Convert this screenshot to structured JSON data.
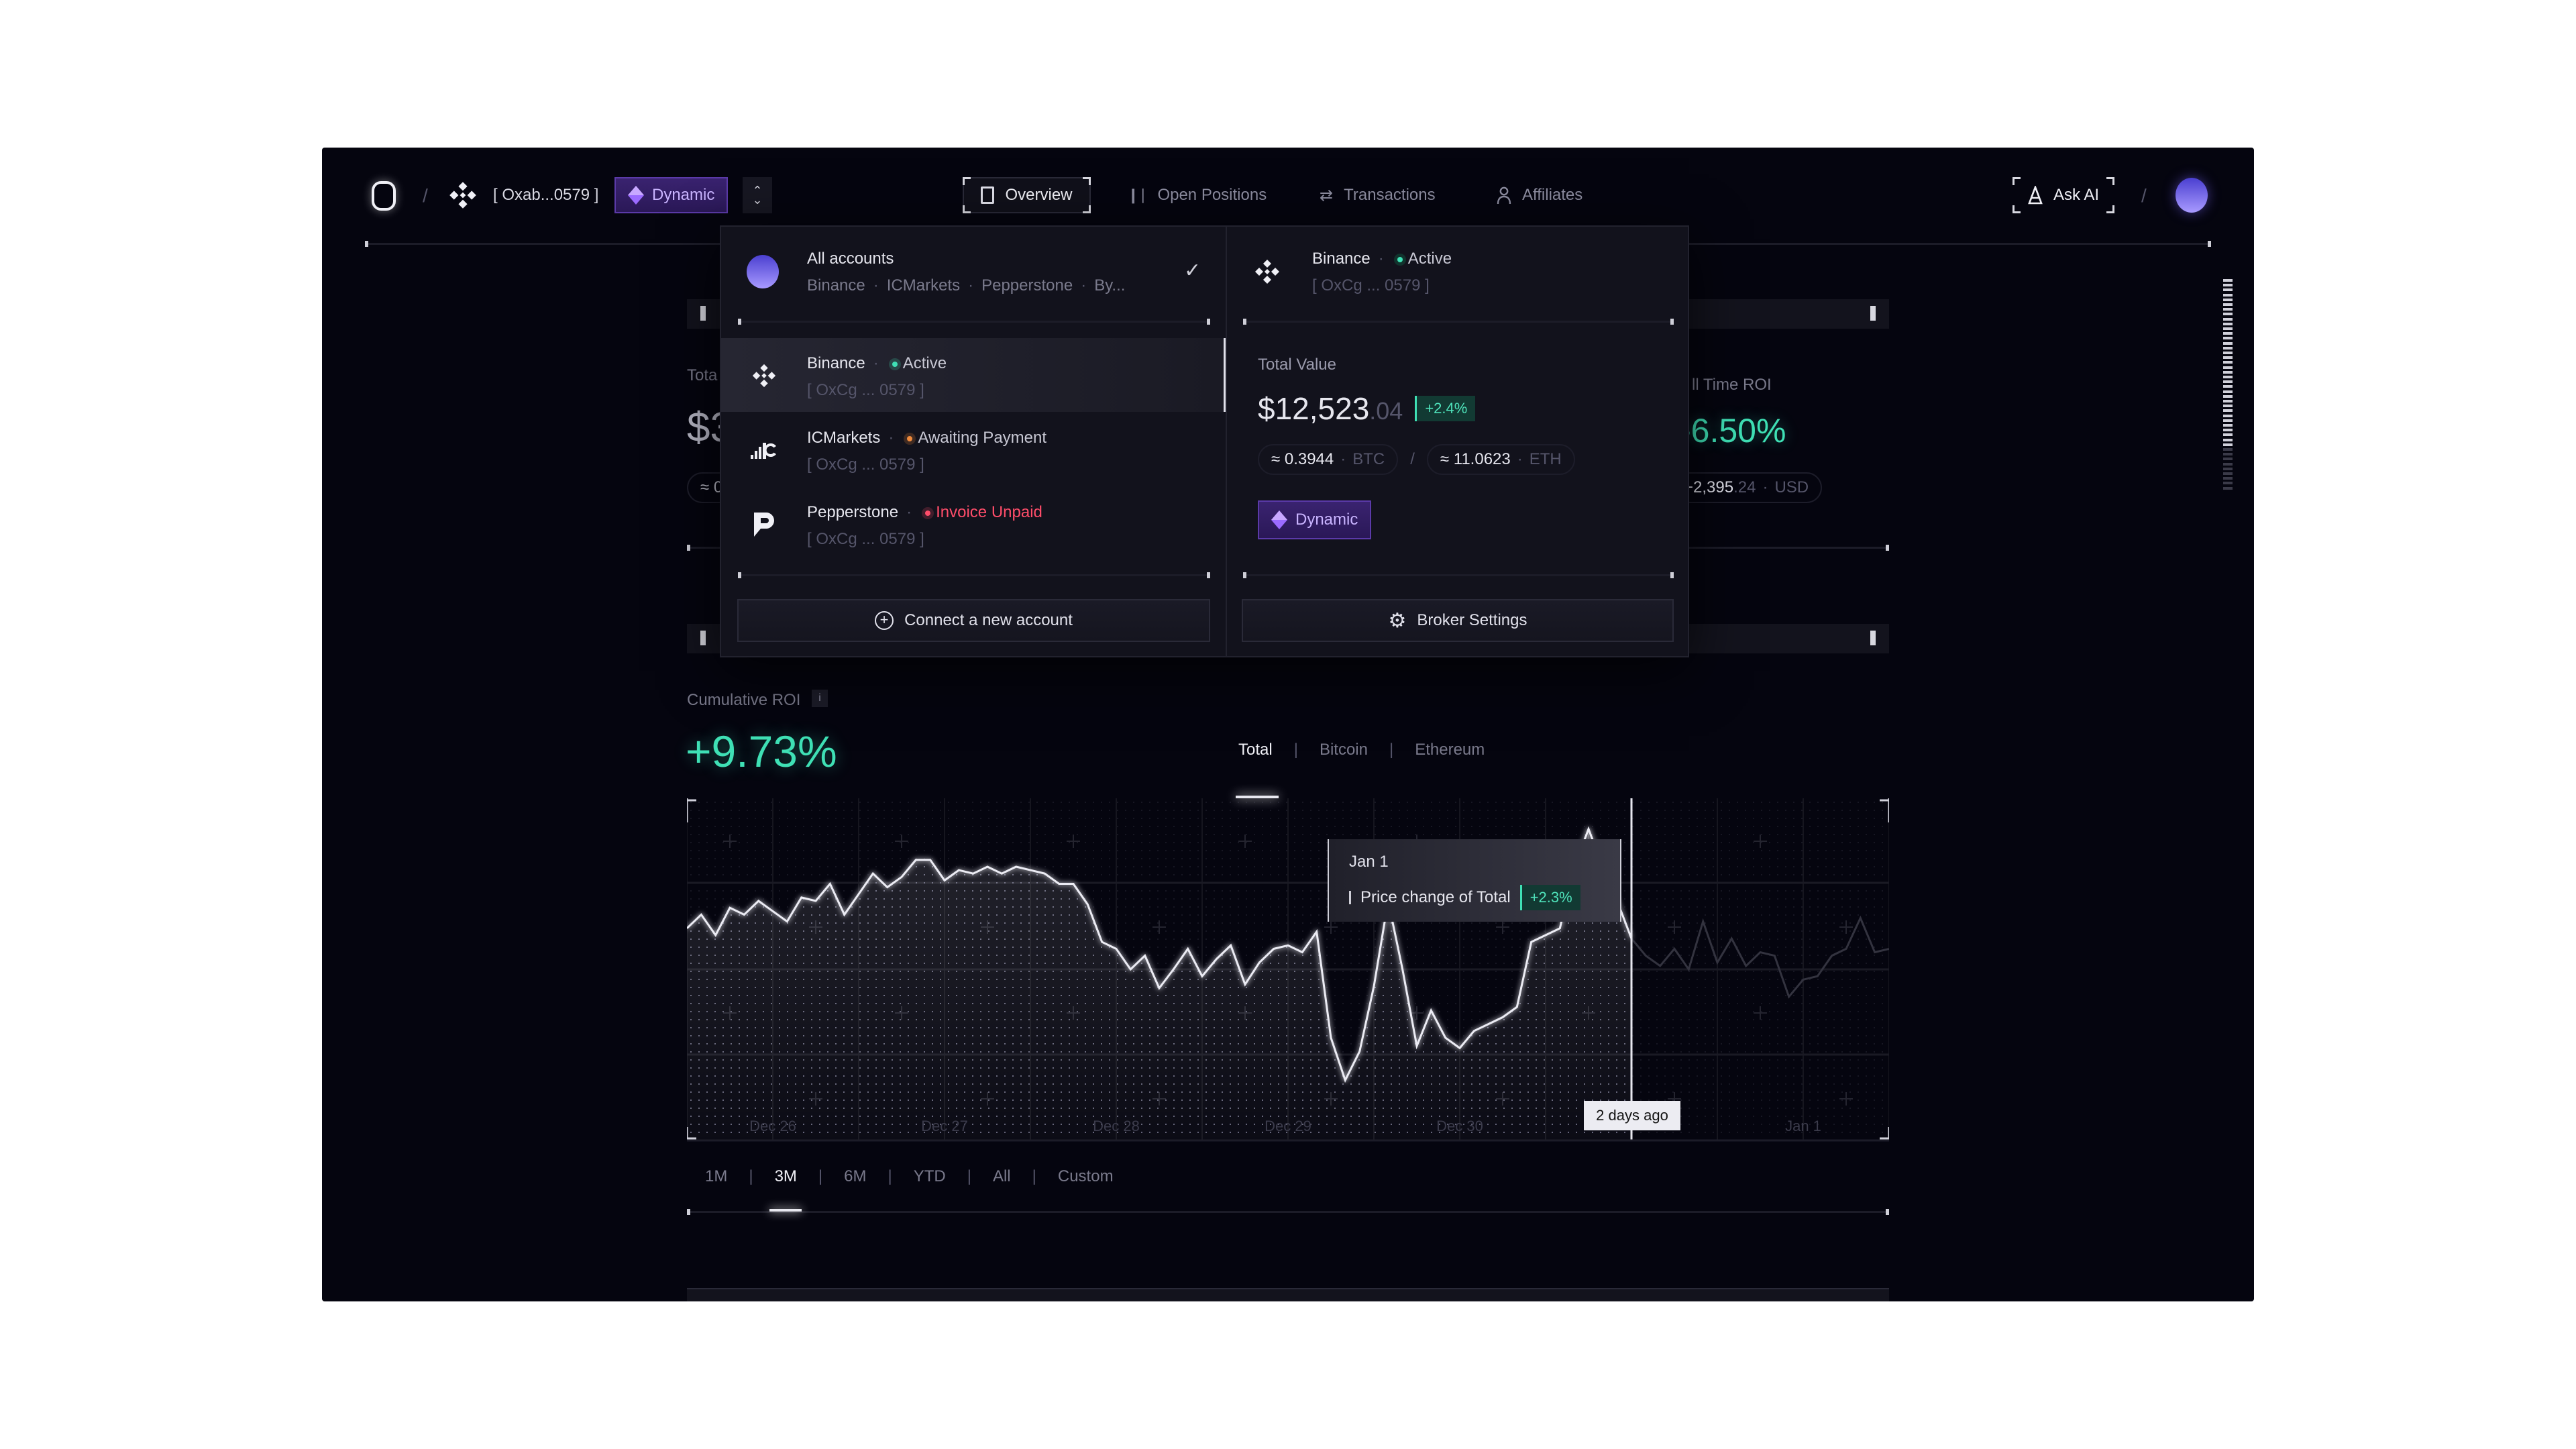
{
  "header": {
    "account_address": "[ Oxab...0579 ]",
    "plan_badge": "Dynamic",
    "nav": [
      {
        "label": "Overview",
        "icon": "document-icon",
        "active": true
      },
      {
        "label": "Open Positions",
        "icon": "chart-bars-icon"
      },
      {
        "label": "Transactions",
        "icon": "swap-arrows-icon"
      },
      {
        "label": "Affiliates",
        "icon": "user-icon"
      }
    ],
    "ask_ai": "Ask AI"
  },
  "background_cards": {
    "total_label_partial": "Tota",
    "total_value_partial": "$3",
    "total_pill_partial": "≈ 0",
    "all_time_roi_label_partial": "ll Time ROI",
    "all_time_roi_value": "-6.50%",
    "all_time_pill_int": "+2,395",
    "all_time_pill_dec": ".24",
    "all_time_pill_unit": "USD"
  },
  "dropdown": {
    "all_accounts": {
      "title": "All accounts",
      "brokers": [
        "Binance",
        "ICMarkets",
        "Pepperstone",
        "By..."
      ],
      "selected": true
    },
    "accounts": [
      {
        "name": "Binance",
        "status": "Active",
        "status_color": "#3fe0b5",
        "address": "[ OxCg ... 0579 ]",
        "icon": "binance-icon",
        "highlighted": true
      },
      {
        "name": "ICMarkets",
        "status": "Awaiting Payment",
        "status_color": "#f08a3c",
        "address": "[ OxCg ... 0579 ]",
        "icon": "icmarkets-icon"
      },
      {
        "name": "Pepperstone",
        "status": "Invoice Unpaid",
        "status_color": "#ff4d6a",
        "address": "[ OxCg ... 0579 ]",
        "icon": "pepperstone-icon"
      }
    ],
    "connect_button": "Connect a new account",
    "detail": {
      "name": "Binance",
      "status": "Active",
      "address": "[ OxCg ... 0579 ]",
      "total_value_label": "Total Value",
      "total_value_int": "$12,523",
      "total_value_dec": ".04",
      "change": "+2.4%",
      "btc_amount": "≈ 0.3944",
      "btc_unit": "BTC",
      "eth_amount": "≈ 11.0623",
      "eth_unit": "ETH",
      "plan_badge": "Dynamic"
    },
    "broker_settings_button": "Broker Settings"
  },
  "roi": {
    "label": "Cumulative ROI",
    "info": "i",
    "value": "+9.73%",
    "tabs": [
      {
        "label": "Total",
        "active": true
      },
      {
        "label": "Bitcoin"
      },
      {
        "label": "Ethereum"
      }
    ]
  },
  "ranges": [
    {
      "label": "1M"
    },
    {
      "label": "3M",
      "active": true
    },
    {
      "label": "6M"
    },
    {
      "label": "YTD"
    },
    {
      "label": "All"
    },
    {
      "label": "Custom"
    }
  ],
  "colors": {
    "accent_green": "#3fe0b5",
    "accent_purple": "#7b5cff",
    "background": "#05050f"
  },
  "chart_data": {
    "type": "area",
    "grid": true,
    "x_ticks": [
      "Dec 26",
      "Dec 27",
      "Dec 28",
      "Dec 29",
      "Dec 30",
      "Jan 1"
    ],
    "x": [
      "Dec 25 12:00",
      "Dec 25 14:00",
      "Dec 25 16:00",
      "Dec 25 18:00",
      "Dec 25 20:00",
      "Dec 25 22:00",
      "Dec 26 00:00",
      "Dec 26 02:00",
      "Dec 26 04:00",
      "Dec 26 06:00",
      "Dec 26 08:00",
      "Dec 26 10:00",
      "Dec 26 12:00",
      "Dec 26 14:00",
      "Dec 26 16:00",
      "Dec 26 18:00",
      "Dec 26 20:00",
      "Dec 26 22:00",
      "Dec 27 00:00",
      "Dec 27 02:00",
      "Dec 27 04:00",
      "Dec 27 06:00",
      "Dec 27 08:00",
      "Dec 27 10:00",
      "Dec 27 12:00",
      "Dec 27 14:00",
      "Dec 27 16:00",
      "Dec 27 18:00",
      "Dec 27 20:00",
      "Dec 27 22:00",
      "Dec 28 00:00",
      "Dec 28 02:00",
      "Dec 28 04:00",
      "Dec 28 06:00",
      "Dec 28 08:00",
      "Dec 28 10:00",
      "Dec 28 12:00",
      "Dec 28 14:00",
      "Dec 28 16:00",
      "Dec 28 18:00",
      "Dec 28 20:00",
      "Dec 28 22:00",
      "Dec 29 00:00",
      "Dec 29 02:00",
      "Dec 29 04:00",
      "Dec 29 06:00",
      "Dec 29 08:00",
      "Dec 29 10:00",
      "Dec 29 12:00",
      "Dec 29 14:00",
      "Dec 29 16:00",
      "Dec 29 18:00",
      "Dec 29 20:00",
      "Dec 29 22:00",
      "Dec 30 00:00",
      "Dec 30 02:00",
      "Dec 30 04:00",
      "Dec 30 06:00",
      "Dec 30 08:00",
      "Dec 30 10:00",
      "Dec 30 12:00",
      "Dec 30 14:00",
      "Dec 30 16:00",
      "Dec 30 18:00",
      "Dec 30 20:00",
      "Dec 30 22:00",
      "Dec 31 00:00",
      "Dec 31 02:00",
      "Dec 31 04:00",
      "Dec 31 06:00",
      "Dec 31 08:00",
      "Dec 31 10:00",
      "Dec 31 12:00",
      "Dec 31 14:00",
      "Dec 31 16:00",
      "Dec 31 18:00",
      "Dec 31 20:00",
      "Dec 31 22:00",
      "Jan 1 00:00",
      "Jan 1 02:00",
      "Jan 1 04:00",
      "Jan 1 06:00",
      "Jan 1 08:00",
      "Jan 1 10:00",
      "Jan 1 12:00"
    ],
    "y": [
      62,
      66,
      60,
      68,
      66,
      70,
      67,
      64,
      71,
      70,
      75,
      66,
      72,
      78,
      74,
      77,
      82,
      82,
      76,
      79,
      78,
      80,
      78,
      80,
      79,
      78,
      75,
      75,
      69,
      58,
      56,
      50,
      54,
      44.5,
      50,
      56,
      48,
      53,
      57,
      45.6,
      52,
      56,
      57,
      55,
      61,
      30,
      17.6,
      26,
      45,
      70,
      50,
      27.6,
      38,
      30,
      27,
      32,
      34,
      36,
      39,
      58,
      60,
      62,
      80,
      91,
      80,
      70,
      59,
      54,
      51,
      56,
      50,
      64,
      52,
      59,
      51,
      55,
      54,
      42,
      47,
      48,
      54,
      56,
      65,
      55,
      56
    ],
    "ylim": [
      0,
      100
    ],
    "cursor": {
      "x": "Dec 31 00:00",
      "label": "2 days ago"
    },
    "tooltip": {
      "date": "Jan 1",
      "series_label": "Price change of Total",
      "value": "+2.3%"
    }
  }
}
